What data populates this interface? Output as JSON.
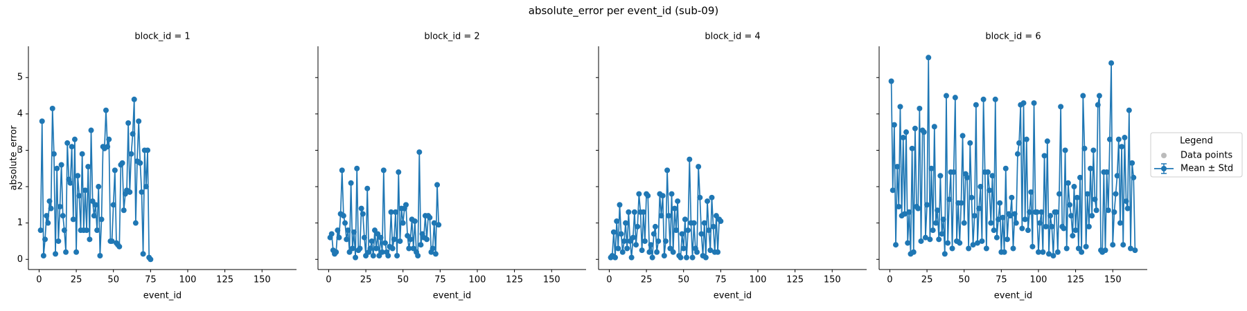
{
  "title": "absolute_error per event_id (sub-09)",
  "legend": {
    "title": "Legend",
    "entries": [
      {
        "label": "Data points",
        "color": "#bbbbbb"
      },
      {
        "label": "Mean ± Std",
        "color": "#1f77b4"
      }
    ]
  },
  "chart_data": [
    {
      "type": "line",
      "title": "block_id = 1",
      "xlabel": "event_id",
      "ylabel": "absolute_error",
      "color": "#1f77b4",
      "xlim": [
        -7.2,
        173.2
      ],
      "ylim": [
        -0.28,
        5.86
      ],
      "xticks": [
        0,
        25,
        50,
        75,
        100,
        125,
        150
      ],
      "yticks": [
        0,
        1,
        2,
        3,
        4,
        5
      ],
      "x": [
        1,
        2,
        3,
        4,
        5,
        6,
        7,
        8,
        9,
        10,
        11,
        12,
        13,
        14,
        15,
        16,
        17,
        18,
        19,
        20,
        21,
        22,
        23,
        24,
        25,
        26,
        27,
        28,
        29,
        30,
        31,
        32,
        33,
        34,
        35,
        36,
        37,
        38,
        39,
        40,
        41,
        42,
        43,
        44,
        45,
        46,
        47,
        48,
        49,
        50,
        51,
        52,
        53,
        54,
        55,
        56,
        57,
        58,
        59,
        60,
        61,
        62,
        63,
        64,
        65,
        66,
        67,
        68,
        69,
        70,
        71,
        72,
        73,
        74,
        75
      ],
      "values": [
        0.8,
        3.8,
        0.1,
        0.55,
        1.2,
        1.0,
        1.6,
        1.4,
        4.15,
        2.9,
        0.15,
        2.5,
        0.5,
        1.45,
        2.6,
        1.2,
        0.8,
        0.2,
        3.2,
        2.2,
        2.1,
        3.1,
        1.1,
        3.3,
        0.2,
        2.3,
        1.75,
        0.8,
        2.9,
        0.8,
        1.9,
        0.8,
        2.55,
        0.55,
        3.55,
        1.6,
        1.2,
        1.5,
        0.8,
        2.0,
        0.1,
        1.1,
        3.1,
        3.05,
        4.1,
        3.1,
        3.3,
        0.5,
        0.5,
        1.5,
        2.45,
        0.45,
        0.4,
        0.35,
        2.6,
        2.65,
        1.35,
        1.8,
        1.9,
        3.75,
        1.85,
        2.9,
        3.45,
        4.4,
        1.0,
        2.7,
        3.8,
        2.65,
        1.85,
        0.15,
        3.0,
        2.0,
        3.0,
        0.05,
        0.0
      ]
    },
    {
      "type": "line",
      "title": "block_id = 2",
      "xlabel": "event_id",
      "color": "#1f77b4",
      "xlim": [
        -7.2,
        173.2
      ],
      "ylim": [
        -0.28,
        5.86
      ],
      "xticks": [
        0,
        25,
        50,
        75,
        100,
        125,
        150
      ],
      "yticks": [
        0,
        1,
        2,
        3,
        4,
        5
      ],
      "x": [
        1,
        2,
        3,
        4,
        5,
        6,
        7,
        8,
        9,
        10,
        11,
        12,
        13,
        14,
        15,
        16,
        17,
        18,
        19,
        20,
        21,
        22,
        23,
        24,
        25,
        26,
        27,
        28,
        29,
        30,
        31,
        32,
        33,
        34,
        35,
        36,
        37,
        38,
        39,
        40,
        41,
        42,
        43,
        44,
        45,
        46,
        47,
        48,
        49,
        50,
        51,
        52,
        53,
        54,
        55,
        56,
        57,
        58,
        59,
        60,
        61,
        62,
        63,
        64,
        65,
        66,
        67,
        68,
        69,
        70,
        71,
        72,
        73,
        74
      ],
      "values": [
        0.6,
        0.7,
        0.25,
        0.15,
        0.2,
        0.8,
        0.6,
        1.25,
        2.45,
        1.2,
        1.0,
        0.55,
        0.8,
        0.2,
        2.1,
        0.3,
        0.75,
        0.05,
        2.5,
        0.25,
        0.3,
        1.4,
        1.25,
        0.6,
        0.1,
        1.95,
        0.2,
        0.3,
        0.5,
        0.1,
        0.8,
        0.3,
        0.7,
        0.1,
        0.6,
        0.2,
        2.45,
        0.45,
        0.2,
        0.1,
        0.35,
        1.3,
        0.3,
        0.55,
        1.3,
        0.1,
        2.4,
        0.5,
        1.4,
        1.0,
        1.4,
        1.5,
        0.65,
        0.3,
        0.55,
        1.1,
        0.3,
        1.05,
        0.2,
        0.1,
        2.95,
        0.4,
        0.7,
        0.6,
        1.2,
        0.55,
        1.2,
        1.15,
        0.2,
        0.3,
        1.0,
        0.15,
        2.05,
        0.95
      ]
    },
    {
      "type": "line",
      "title": "block_id = 4",
      "xlabel": "event_id",
      "color": "#1f77b4",
      "xlim": [
        -7.2,
        173.2
      ],
      "ylim": [
        -0.28,
        5.86
      ],
      "xticks": [
        0,
        25,
        50,
        75,
        100,
        125,
        150
      ],
      "yticks": [
        0,
        1,
        2,
        3,
        4,
        5
      ],
      "x": [
        1,
        2,
        3,
        4,
        5,
        6,
        7,
        8,
        9,
        10,
        11,
        12,
        13,
        14,
        15,
        16,
        17,
        18,
        19,
        20,
        21,
        22,
        23,
        24,
        25,
        26,
        27,
        28,
        29,
        30,
        31,
        32,
        33,
        34,
        35,
        36,
        37,
        38,
        39,
        40,
        41,
        42,
        43,
        44,
        45,
        46,
        47,
        48,
        49,
        50,
        51,
        52,
        53,
        54,
        55,
        56,
        57,
        58,
        59,
        60,
        61,
        62,
        63,
        64,
        65,
        66,
        67,
        68,
        69,
        70,
        71,
        72,
        73,
        74,
        75
      ],
      "values": [
        0.05,
        0.1,
        0.75,
        0.05,
        1.05,
        0.3,
        1.5,
        0.7,
        0.2,
        0.5,
        1.0,
        0.3,
        1.3,
        0.5,
        0.05,
        0.6,
        1.3,
        0.4,
        0.9,
        1.8,
        1.3,
        0.25,
        1.3,
        0.5,
        1.8,
        1.75,
        0.2,
        0.4,
        0.05,
        0.7,
        0.9,
        0.2,
        0.5,
        1.8,
        1.2,
        1.75,
        0.1,
        0.5,
        2.45,
        1.2,
        0.3,
        1.8,
        0.2,
        1.4,
        0.8,
        1.6,
        0.1,
        0.05,
        0.7,
        0.3,
        1.1,
        0.05,
        0.8,
        2.75,
        1.0,
        0.05,
        1.0,
        0.3,
        0.2,
        2.55,
        1.7,
        0.7,
        0.1,
        1.0,
        0.05,
        1.6,
        0.8,
        0.25,
        1.7,
        0.9,
        0.2,
        1.2,
        0.2,
        1.1,
        1.05
      ]
    },
    {
      "type": "line",
      "title": "block_id = 6",
      "xlabel": "event_id",
      "color": "#1f77b4",
      "xlim": [
        -7.2,
        173.2
      ],
      "ylim": [
        -0.28,
        5.86
      ],
      "xticks": [
        0,
        25,
        50,
        75,
        100,
        125,
        150
      ],
      "yticks": [
        0,
        1,
        2,
        3,
        4,
        5
      ],
      "x": [
        1,
        2,
        3,
        4,
        5,
        6,
        7,
        8,
        9,
        10,
        11,
        12,
        13,
        14,
        15,
        16,
        17,
        18,
        19,
        20,
        21,
        22,
        23,
        24,
        25,
        26,
        27,
        28,
        29,
        30,
        31,
        32,
        33,
        34,
        35,
        36,
        37,
        38,
        39,
        40,
        41,
        42,
        43,
        44,
        45,
        46,
        47,
        48,
        49,
        50,
        51,
        52,
        53,
        54,
        55,
        56,
        57,
        58,
        59,
        60,
        61,
        62,
        63,
        64,
        65,
        66,
        67,
        68,
        69,
        70,
        71,
        72,
        73,
        74,
        75,
        76,
        77,
        78,
        79,
        80,
        81,
        82,
        83,
        84,
        85,
        86,
        87,
        88,
        89,
        90,
        91,
        92,
        93,
        94,
        95,
        96,
        97,
        98,
        99,
        100,
        101,
        102,
        103,
        104,
        105,
        106,
        107,
        108,
        109,
        110,
        111,
        112,
        113,
        114,
        115,
        116,
        117,
        118,
        119,
        120,
        121,
        122,
        123,
        124,
        125,
        126,
        127,
        128,
        129,
        130,
        131,
        132,
        133,
        134,
        135,
        136,
        137,
        138,
        139,
        140,
        141,
        142,
        143,
        144,
        145,
        146,
        147,
        148,
        149,
        150,
        151,
        152,
        153,
        154,
        155,
        156,
        157,
        158,
        159,
        160,
        161,
        162,
        163,
        164,
        165
      ],
      "values": [
        4.9,
        1.9,
        3.7,
        0.4,
        2.55,
        1.45,
        4.2,
        1.2,
        3.35,
        1.25,
        3.5,
        0.45,
        1.3,
        0.15,
        3.05,
        0.2,
        3.6,
        1.45,
        1.4,
        4.15,
        0.5,
        3.55,
        3.5,
        0.6,
        1.5,
        5.55,
        0.55,
        2.5,
        0.8,
        3.65,
        1.0,
        1.35,
        0.55,
        2.3,
        0.7,
        1.1,
        0.15,
        4.5,
        0.45,
        1.65,
        2.4,
        0.3,
        2.4,
        4.45,
        0.5,
        1.55,
        0.45,
        1.55,
        3.4,
        1.0,
        2.35,
        2.25,
        0.3,
        3.2,
        1.7,
        0.4,
        1.2,
        4.25,
        0.45,
        1.4,
        2.0,
        0.5,
        4.4,
        2.4,
        0.3,
        2.4,
        1.9,
        1.0,
        2.3,
        0.8,
        4.4,
        0.6,
        1.1,
        1.55,
        0.2,
        1.15,
        0.2,
        2.5,
        0.55,
        1.25,
        1.2,
        1.7,
        0.3,
        1.25,
        1.0,
        2.9,
        3.2,
        4.25,
        0.85,
        4.3,
        1.1,
        3.3,
        0.8,
        1.3,
        1.85,
        0.35,
        4.3,
        1.3,
        1.3,
        0.2,
        1.0,
        1.3,
        0.2,
        2.85,
        0.9,
        3.25,
        0.15,
        1.2,
        0.9,
        0.1,
        1.3,
        1.3,
        0.2,
        1.8,
        4.2,
        0.9,
        0.85,
        3.0,
        0.3,
        2.1,
        1.5,
        1.2,
        0.65,
        2.0,
        0.8,
        1.7,
        0.3,
        2.25,
        0.2,
        4.5,
        3.05,
        0.35,
        1.8,
        0.9,
        2.5,
        1.2,
        3.0,
        1.65,
        1.35,
        4.25,
        4.5,
        0.25,
        0.2,
        2.4,
        0.25,
        2.4,
        1.35,
        3.3,
        5.4,
        0.4,
        1.3,
        1.8,
        2.3,
        3.3,
        1.0,
        3.1,
        0.4,
        3.35,
        1.6,
        1.4,
        4.1,
        0.3,
        2.65,
        2.25,
        0.25
      ]
    }
  ]
}
